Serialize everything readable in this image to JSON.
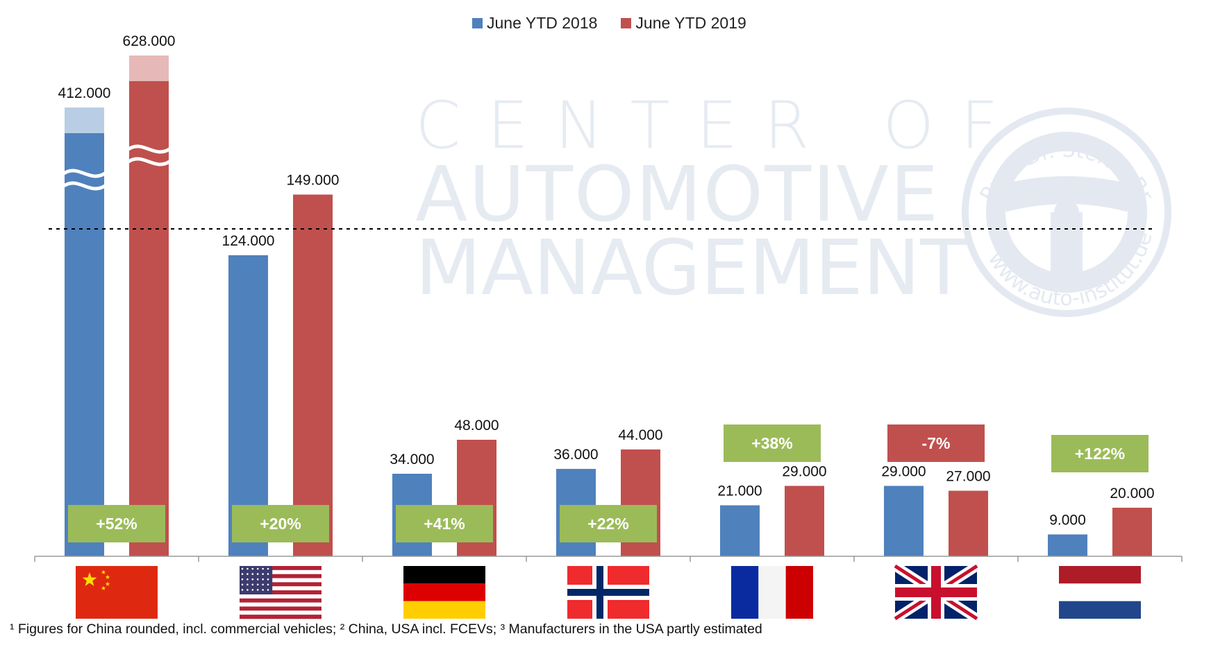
{
  "chart_data": {
    "type": "bar",
    "categories": [
      "China",
      "USA",
      "Germany",
      "Norway",
      "France",
      "United Kingdom",
      "Netherlands"
    ],
    "series": [
      {
        "name": "June YTD 2018",
        "color": "#4f81bd",
        "values": [
          412000,
          124000,
          34000,
          36000,
          21000,
          29000,
          9000
        ],
        "labels": [
          "412.000",
          "124.000",
          "34.000",
          "36.000",
          "21.000",
          "29.000",
          "9.000"
        ]
      },
      {
        "name": "June YTD 2019",
        "color": "#c0504d",
        "values": [
          628000,
          149000,
          48000,
          44000,
          29000,
          27000,
          20000
        ],
        "labels": [
          "628.000",
          "149.000",
          "48.000",
          "44.000",
          "29.000",
          "27.000",
          "20.000"
        ]
      }
    ],
    "growth_labels": [
      "+52%",
      "+20%",
      "+41%",
      "+22%",
      "+38%",
      "-7%",
      "+122%"
    ],
    "growth_colors": [
      "#9bbb59",
      "#9bbb59",
      "#9bbb59",
      "#9bbb59",
      "#9bbb59",
      "#c0504d",
      "#9bbb59"
    ],
    "axis_break": true,
    "legend_position": "top-center"
  },
  "legend": {
    "series_2018": "June YTD 2018",
    "series_2019": "June YTD 2019"
  },
  "watermark": {
    "line1": "CENTER OF",
    "line2": "AUTOMOTIVE",
    "line3": "MANAGEMENT",
    "seal_text_top": "Prof. Dr. Stefan Bratzel",
    "seal_text_bottom": "www.auto-institut.de"
  },
  "footnote": "¹ Figures for China rounded, incl. commercial vehicles; ² China, USA incl. FCEVs; ³ Manufacturers in the USA partly estimated"
}
